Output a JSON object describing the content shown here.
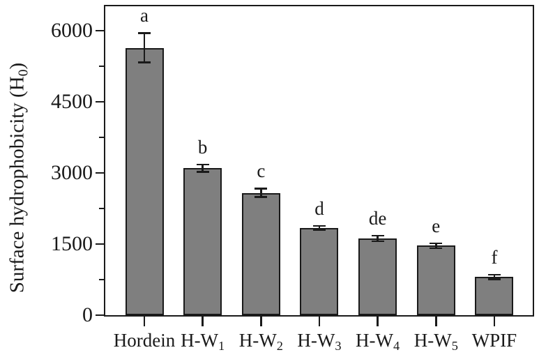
{
  "figure": {
    "background": "#ffffff",
    "axis_color": "#1a1a1a"
  },
  "chart_data": {
    "type": "bar",
    "title": "",
    "xlabel": "",
    "ylabel": {
      "text": "Surface hydrophobicity (H0)",
      "parts": [
        {
          "t": "Surface hydrophobicity (H",
          "sub": false
        },
        {
          "t": "0",
          "sub": true
        },
        {
          "t": ")",
          "sub": false
        }
      ]
    },
    "categories": [
      {
        "base": "Hordein",
        "sub": ""
      },
      {
        "base": "H-W",
        "sub": "1"
      },
      {
        "base": "H-W",
        "sub": "2"
      },
      {
        "base": "H-W",
        "sub": "3"
      },
      {
        "base": "H-W",
        "sub": "4"
      },
      {
        "base": "H-W",
        "sub": "5"
      },
      {
        "base": "WPIF",
        "sub": ""
      }
    ],
    "series": [
      {
        "name": "Surface hydrophobicity (H0)",
        "values": [
          5640,
          3100,
          2580,
          1840,
          1620,
          1465,
          805
        ],
        "errors": [
          310,
          75,
          90,
          45,
          60,
          50,
          50
        ],
        "sig_letters": [
          "a",
          "b",
          "c",
          "d",
          "de",
          "e",
          "f"
        ]
      }
    ],
    "ylim": [
      0,
      6530
    ],
    "yticks_major": [
      0,
      1500,
      3000,
      4500,
      6000
    ],
    "ytick_labels": [
      "0",
      "1500",
      "3000",
      "4500",
      "6000"
    ],
    "yticks_minor": [
      750,
      2250,
      3750,
      5250
    ],
    "grid": false,
    "legend": false,
    "bar_fill_color": "#7f7f7f",
    "bar_edge_color": "#1a1a1a"
  }
}
